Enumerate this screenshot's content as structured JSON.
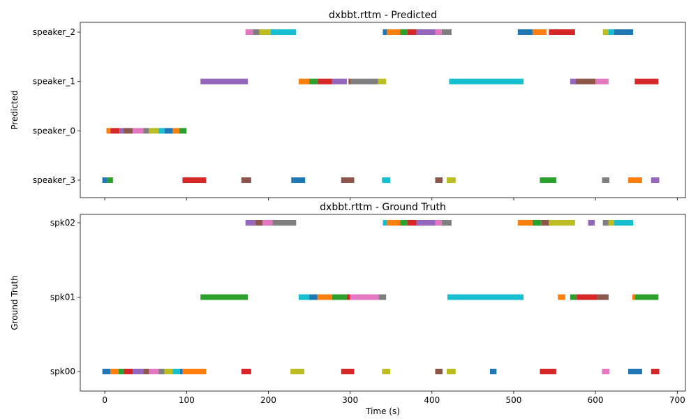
{
  "chart_data": [
    {
      "type": "timeline",
      "title": "dxbbt.rttm - Predicted",
      "ylabel": "Predicted",
      "xlabel": "",
      "xlim": [
        -30,
        710
      ],
      "xticks": [
        0,
        100,
        200,
        300,
        400,
        500,
        600,
        700
      ],
      "show_xtick_labels": false,
      "tracks": [
        {
          "name": "speaker_2",
          "segments": [
            [
              172,
              181,
              "#e377c2"
            ],
            [
              181,
              189,
              "#7f7f7f"
            ],
            [
              189,
              203,
              "#bcbd22"
            ],
            [
              203,
              234,
              "#17becf"
            ],
            [
              340,
              345,
              "#1f77b4"
            ],
            [
              345,
              361,
              "#ff7f0e"
            ],
            [
              361,
              370,
              "#2ca02c"
            ],
            [
              370,
              381,
              "#d62728"
            ],
            [
              381,
              404,
              "#9467bd"
            ],
            [
              404,
              412,
              "#e377c2"
            ],
            [
              412,
              424,
              "#7f7f7f"
            ],
            [
              505,
              523,
              "#1f77b4"
            ],
            [
              523,
              540,
              "#ff7f0e"
            ],
            [
              543,
              575,
              "#d62728"
            ],
            [
              609,
              616,
              "#bcbd22"
            ],
            [
              616,
              623,
              "#17becf"
            ],
            [
              623,
              646,
              "#1f77b4"
            ]
          ]
        },
        {
          "name": "speaker_1",
          "segments": [
            [
              117,
              175,
              "#9467bd"
            ],
            [
              237,
              250,
              "#ff7f0e"
            ],
            [
              250,
              260,
              "#2ca02c"
            ],
            [
              260,
              278,
              "#d62728"
            ],
            [
              278,
              296,
              "#9467bd"
            ],
            [
              298,
              301,
              "#8c564b"
            ],
            [
              301,
              334,
              "#7f7f7f"
            ],
            [
              334,
              344,
              "#bcbd22"
            ],
            [
              421,
              512,
              "#17becf"
            ],
            [
              569,
              576,
              "#9467bd"
            ],
            [
              576,
              600,
              "#8c564b"
            ],
            [
              600,
              616,
              "#e377c2"
            ],
            [
              648,
              677,
              "#d62728"
            ]
          ]
        },
        {
          "name": "speaker_0",
          "segments": [
            [
              2,
              7,
              "#ff7f0e"
            ],
            [
              7,
              18,
              "#d62728"
            ],
            [
              18,
              23,
              "#9467bd"
            ],
            [
              23,
              34,
              "#8c564b"
            ],
            [
              34,
              47,
              "#e377c2"
            ],
            [
              47,
              54,
              "#7f7f7f"
            ],
            [
              54,
              66,
              "#bcbd22"
            ],
            [
              66,
              73,
              "#17becf"
            ],
            [
              73,
              83,
              "#1f77b4"
            ],
            [
              83,
              91,
              "#ff7f0e"
            ],
            [
              91,
              100,
              "#2ca02c"
            ]
          ]
        },
        {
          "name": "speaker_3",
          "segments": [
            [
              -3,
              3,
              "#1f77b4"
            ],
            [
              3,
              10,
              "#2ca02c"
            ],
            [
              95,
              124,
              "#d62728"
            ],
            [
              167,
              179,
              "#8c564b"
            ],
            [
              228,
              245,
              "#1f77b4"
            ],
            [
              289,
              305,
              "#8c564b"
            ],
            [
              339,
              349,
              "#17becf"
            ],
            [
              404,
              413,
              "#8c564b"
            ],
            [
              418,
              429,
              "#bcbd22"
            ],
            [
              532,
              552,
              "#2ca02c"
            ],
            [
              608,
              617,
              "#7f7f7f"
            ],
            [
              640,
              657,
              "#ff7f0e"
            ],
            [
              668,
              678,
              "#9467bd"
            ]
          ]
        }
      ]
    },
    {
      "type": "timeline",
      "title": "dxbbt.rttm - Ground Truth",
      "ylabel": "Ground Truth",
      "xlabel": "Time (s)",
      "xlim": [
        -30,
        710
      ],
      "xticks": [
        0,
        100,
        200,
        300,
        400,
        500,
        600,
        700
      ],
      "show_xtick_labels": true,
      "tracks": [
        {
          "name": "spk02",
          "segments": [
            [
              172,
              184,
              "#9467bd"
            ],
            [
              184,
              193,
              "#8c564b"
            ],
            [
              193,
              205,
              "#e377c2"
            ],
            [
              205,
              234,
              "#7f7f7f"
            ],
            [
              340,
              345,
              "#17becf"
            ],
            [
              345,
              361,
              "#ff7f0e"
            ],
            [
              361,
              370,
              "#2ca02c"
            ],
            [
              370,
              381,
              "#d62728"
            ],
            [
              381,
              404,
              "#9467bd"
            ],
            [
              404,
              412,
              "#e377c2"
            ],
            [
              412,
              424,
              "#7f7f7f"
            ],
            [
              505,
              523,
              "#ff7f0e"
            ],
            [
              523,
              534,
              "#2ca02c"
            ],
            [
              534,
              543,
              "#8c564b"
            ],
            [
              543,
              575,
              "#bcbd22"
            ],
            [
              591,
              599,
              "#9467bd"
            ],
            [
              609,
              616,
              "#7f7f7f"
            ],
            [
              616,
              623,
              "#bcbd22"
            ],
            [
              623,
              646,
              "#17becf"
            ]
          ]
        },
        {
          "name": "spk01",
          "segments": [
            [
              117,
              175,
              "#2ca02c"
            ],
            [
              237,
              250,
              "#17becf"
            ],
            [
              250,
              260,
              "#1f77b4"
            ],
            [
              260,
              278,
              "#ff7f0e"
            ],
            [
              278,
              296,
              "#2ca02c"
            ],
            [
              296,
              300,
              "#d62728"
            ],
            [
              300,
              335,
              "#e377c2"
            ],
            [
              335,
              344,
              "#7f7f7f"
            ],
            [
              419,
              512,
              "#17becf"
            ],
            [
              554,
              563,
              "#ff7f0e"
            ],
            [
              569,
              577,
              "#2ca02c"
            ],
            [
              577,
              602,
              "#d62728"
            ],
            [
              602,
              616,
              "#8c564b"
            ],
            [
              645,
              648,
              "#ff7f0e"
            ],
            [
              648,
              677,
              "#2ca02c"
            ]
          ]
        },
        {
          "name": "spk00",
          "segments": [
            [
              -3,
              7,
              "#1f77b4"
            ],
            [
              7,
              17,
              "#ff7f0e"
            ],
            [
              17,
              23,
              "#2ca02c"
            ],
            [
              23,
              34,
              "#d62728"
            ],
            [
              34,
              47,
              "#9467bd"
            ],
            [
              47,
              54,
              "#8c564b"
            ],
            [
              54,
              66,
              "#e377c2"
            ],
            [
              66,
              73,
              "#7f7f7f"
            ],
            [
              73,
              83,
              "#bcbd22"
            ],
            [
              83,
              92,
              "#17becf"
            ],
            [
              92,
              95,
              "#1f77b4"
            ],
            [
              95,
              124,
              "#ff7f0e"
            ],
            [
              167,
              179,
              "#d62728"
            ],
            [
              227,
              244,
              "#bcbd22"
            ],
            [
              289,
              305,
              "#d62728"
            ],
            [
              339,
              349,
              "#bcbd22"
            ],
            [
              404,
              413,
              "#8c564b"
            ],
            [
              418,
              429,
              "#bcbd22"
            ],
            [
              471,
              479,
              "#1f77b4"
            ],
            [
              532,
              552,
              "#d62728"
            ],
            [
              608,
              617,
              "#e377c2"
            ],
            [
              640,
              657,
              "#1f77b4"
            ],
            [
              668,
              678,
              "#d62728"
            ]
          ]
        }
      ]
    }
  ]
}
